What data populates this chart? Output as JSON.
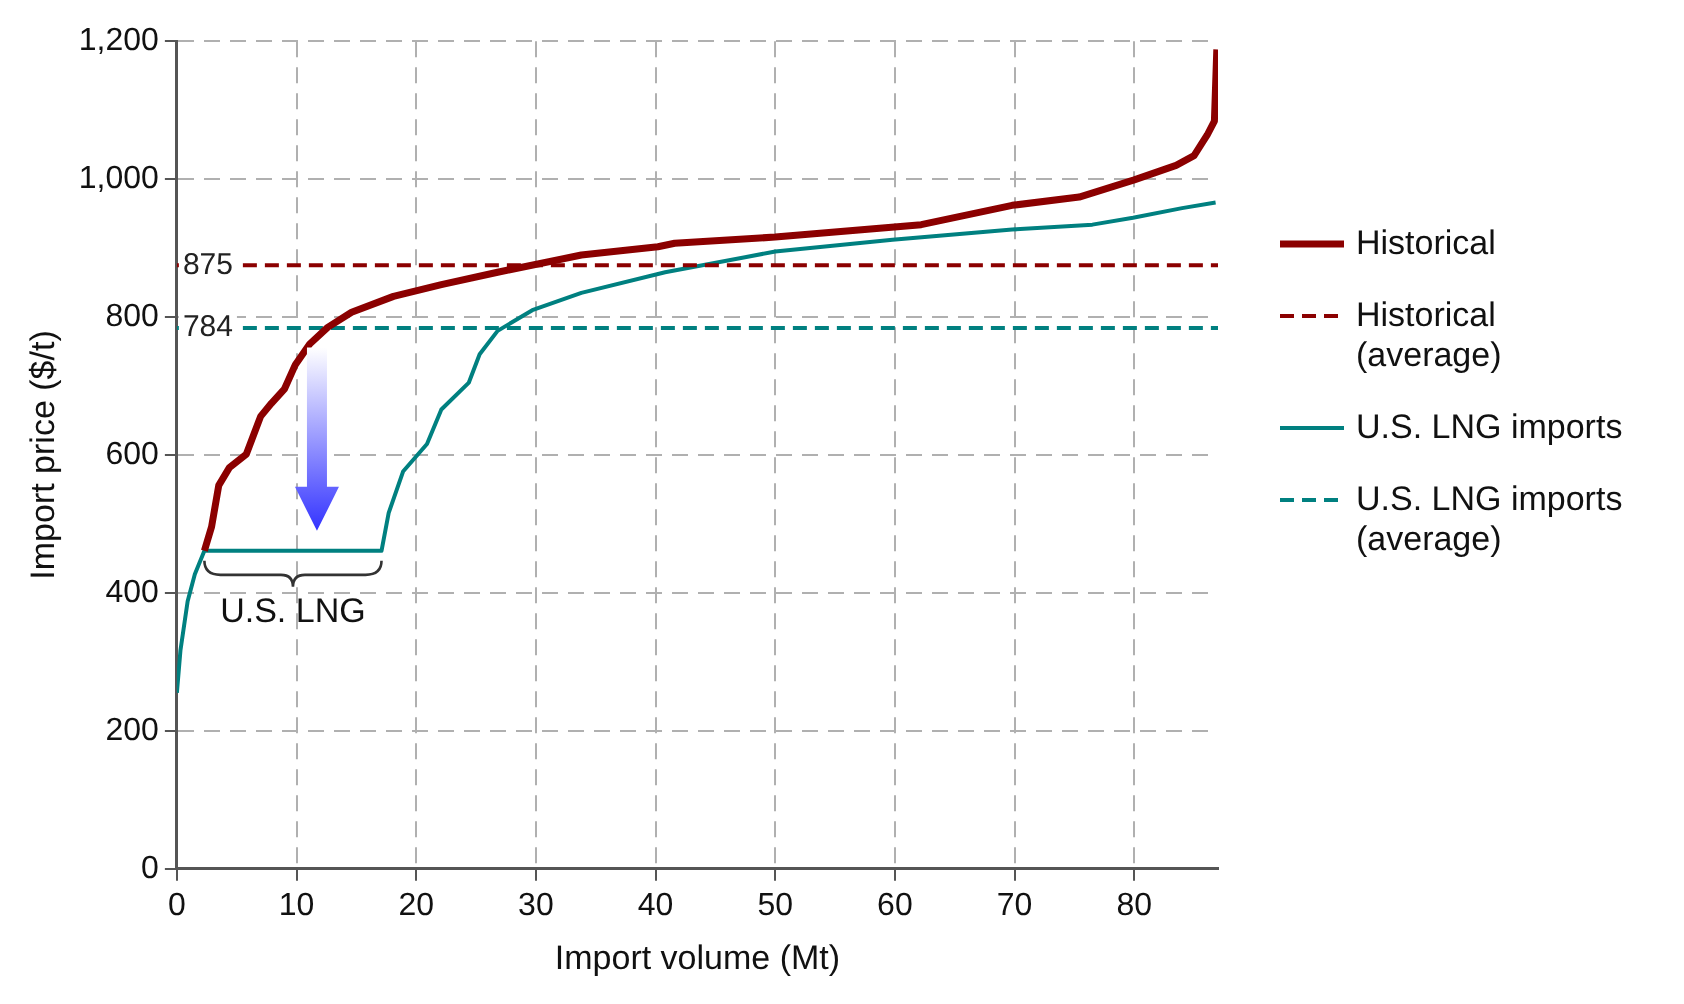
{
  "chart_data": {
    "type": "line",
    "xlabel": "Import volume (Mt)",
    "ylabel": "Import price ($/t)",
    "xlim": [
      0,
      87
    ],
    "xticks": [
      0,
      10,
      20,
      30,
      40,
      50,
      60,
      70,
      80
    ],
    "ylim": [
      0,
      1200
    ],
    "yticks": [
      0,
      200,
      400,
      600,
      800,
      {
        "value": 1000,
        "label": "1,000"
      },
      {
        "value": 1200,
        "label": "1,200"
      }
    ],
    "grid": true,
    "legend": "right",
    "marker": "none",
    "line_style": "solid",
    "series": [
      {
        "name": "Historical",
        "color": "#8b0000",
        "x": [
          2.3,
          2.9,
          3.5,
          4.4,
          5.8,
          7.0,
          7.9,
          9.0,
          9.9,
          11.1,
          12.6,
          14.6,
          18.1,
          22.1,
          26.8,
          33.8,
          40.2,
          41.6,
          50,
          62.2,
          69.8,
          75.4,
          80,
          83.5,
          85,
          86.1,
          86.7,
          86.9
        ],
        "values": [
          461,
          496,
          556,
          582,
          601,
          656,
          675,
          696,
          731,
          761,
          785,
          807,
          830,
          847,
          865,
          890,
          902,
          907,
          916,
          934,
          962,
          974,
          999,
          1020,
          1034,
          1064,
          1084,
          1188
        ]
      },
      {
        "name": "Historical (average)",
        "color": "#8b0000",
        "line_style": "dashed",
        "x": [
          0,
          87
        ],
        "values": [
          875,
          875
        ],
        "value_labels": [
          "875",
          null
        ]
      },
      {
        "name": "U.S. LNG imports",
        "color": "#008080",
        "x": [
          0,
          0.3,
          0.9,
          1.5,
          2.3,
          17.1,
          17.7,
          18.9,
          20.9,
          22.1,
          24.4,
          25.3,
          26.8,
          29.7,
          33.8,
          40.8,
          50,
          59.8,
          69.8,
          76.5,
          79.9,
          84,
          86.8
        ],
        "values": [
          255,
          317,
          388,
          427,
          461,
          461,
          516,
          576,
          616,
          666,
          705,
          746,
          780,
          810,
          835,
          865,
          895,
          912,
          927,
          934,
          944,
          958,
          966
        ]
      },
      {
        "name": "U.S. LNG imports (average)",
        "color": "#008080",
        "line_style": "dashed",
        "x": [
          0,
          87
        ],
        "values": [
          784,
          784
        ],
        "value_labels": [
          "784",
          null
        ]
      }
    ],
    "annotations": [
      "U.S. LNG"
    ]
  }
}
